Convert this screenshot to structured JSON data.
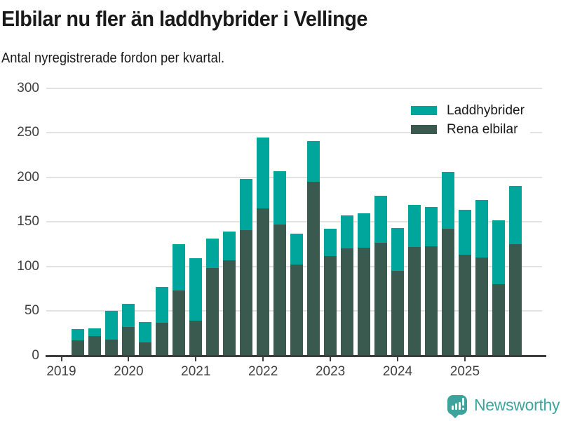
{
  "header": {
    "title": "Elbilar nu fler än laddhybrider i Vellinge",
    "subtitle": "Antal nyregistrerade fordon per kvartal."
  },
  "legend": [
    {
      "label": "Laddhybrider",
      "color": "#00a59b"
    },
    {
      "label": "Rena elbilar",
      "color": "#3a594f"
    }
  ],
  "footer": {
    "brand": "Newsworthy",
    "brand_color": "#3ca49d",
    "logo_icon": "bar-chart-speech-bubble"
  },
  "colors": {
    "teal_series": "#00a59b",
    "dark_series": "#3a594f",
    "gridline": "#e2e2e2",
    "axis": "#3d3d3d",
    "tick_text": "#3f3f3f",
    "text": "#1a1a1a",
    "brand": "#3ca49d"
  },
  "chart_data": {
    "type": "bar",
    "stacked": true,
    "title": "Elbilar nu fler än laddhybrider i Vellinge",
    "subtitle": "Antal nyregistrerade fordon per kvartal.",
    "xlabel": "",
    "ylabel": "",
    "ylim": [
      0,
      300
    ],
    "y_ticks": [
      0,
      50,
      100,
      150,
      200,
      250,
      300
    ],
    "x_tick_labels": [
      "2019",
      "2020",
      "2021",
      "2022",
      "2023",
      "2024",
      "2025"
    ],
    "grid": "horizontal",
    "legend_position": "top-right",
    "quarters": [
      "2019-Q2",
      "2019-Q3",
      "2019-Q4",
      "2020-Q1",
      "2020-Q2",
      "2020-Q3",
      "2020-Q4",
      "2021-Q1",
      "2021-Q2",
      "2021-Q3",
      "2021-Q4",
      "2022-Q1",
      "2022-Q2",
      "2022-Q3",
      "2022-Q4",
      "2023-Q1",
      "2023-Q2",
      "2023-Q3",
      "2023-Q4",
      "2024-Q1",
      "2024-Q2",
      "2024-Q3",
      "2024-Q4",
      "2025-Q1",
      "2025-Q2",
      "2025-Q3",
      "2025-Q4"
    ],
    "series": [
      {
        "name": "Rena elbilar",
        "color": "#3a594f",
        "values": [
          17,
          22,
          18,
          32,
          15,
          37,
          73,
          39,
          98,
          107,
          141,
          165,
          147,
          102,
          195,
          112,
          120,
          121,
          127,
          95,
          122,
          123,
          142,
          113,
          110,
          80,
          125
        ]
      },
      {
        "name": "Laddhybrider",
        "color": "#00a59b",
        "values": [
          13,
          9,
          32,
          26,
          23,
          40,
          52,
          70,
          33,
          32,
          57,
          80,
          60,
          35,
          46,
          30,
          37,
          39,
          52,
          48,
          47,
          44,
          64,
          51,
          65,
          72,
          65
        ]
      }
    ],
    "stacked_totals": [
      30,
      31,
      50,
      58,
      38,
      77,
      125,
      109,
      131,
      139,
      198,
      245,
      207,
      137,
      241,
      142,
      157,
      160,
      179,
      143,
      169,
      167,
      206,
      164,
      175,
      152,
      190
    ]
  }
}
